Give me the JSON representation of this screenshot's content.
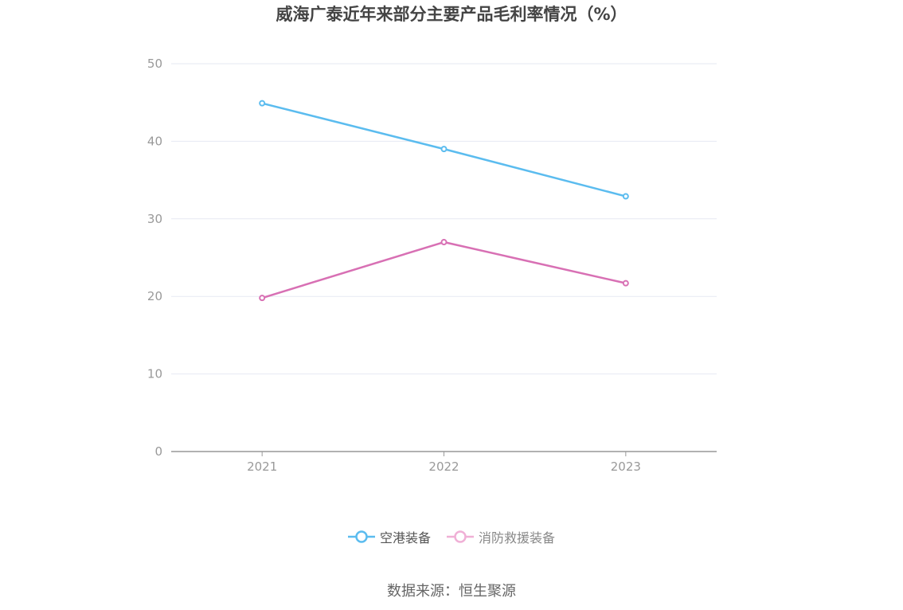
{
  "chart_data": {
    "type": "line",
    "title": "威海广泰近年来部分主要产品毛利率情况（%）",
    "categories": [
      "2021",
      "2022",
      "2023"
    ],
    "series": [
      {
        "name": "空港装备",
        "values": [
          44.9,
          39.0,
          32.9
        ],
        "color": "#5bbcef"
      },
      {
        "name": "消防救援装备",
        "values": [
          19.8,
          27.0,
          21.7
        ],
        "color": "#d870b4"
      }
    ],
    "ylim": [
      0,
      50
    ],
    "yticks": [
      "0",
      "10",
      "20",
      "30",
      "40",
      "50"
    ],
    "grid": true,
    "legend_position": "bottom"
  },
  "source": "数据来源：恒生聚源"
}
